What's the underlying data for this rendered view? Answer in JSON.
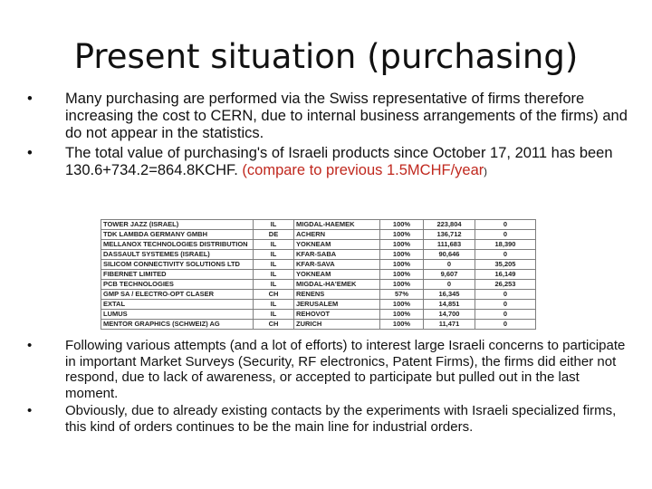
{
  "title": "Present situation (purchasing)",
  "bullets_top": [
    {
      "marker": "•",
      "text_parts": [
        {
          "text": " Many purchasing are performed via the Swiss representative of firms therefore increasing the cost to CERN, due to internal business arrangements of the firms) and do not appear in the statistics.",
          "style": "normal"
        }
      ]
    },
    {
      "marker": "•",
      "text_parts": [
        {
          "text": " The total value of purchasing's of Israeli products since October 17, 2011 has been 130.6+734.2=864.8KCHF. ",
          "style": "normal"
        },
        {
          "text": "(compare to previous 1.5MCHF/year",
          "style": "red"
        },
        {
          "text": ")",
          "style": "small"
        }
      ]
    }
  ],
  "table": {
    "rows": [
      [
        "TOWER JAZZ (ISRAEL)",
        "IL",
        "MIGDAL-HAEMEK",
        "100%",
        "223,804",
        "0"
      ],
      [
        "TDK LAMBDA GERMANY GMBH",
        "DE",
        "ACHERN",
        "100%",
        "136,712",
        "0"
      ],
      [
        "MELLANOX TECHNOLOGIES DISTRIBUTION",
        "IL",
        "YOKNEAM",
        "100%",
        "111,683",
        "18,390"
      ],
      [
        "DASSAULT SYSTEMES (ISRAEL)",
        "IL",
        "KFAR-SABA",
        "100%",
        "90,646",
        "0"
      ],
      [
        "SILICOM CONNECTIVITY SOLUTIONS LTD",
        "IL",
        "KFAR-SAVA",
        "100%",
        "0",
        "35,205"
      ],
      [
        "FIBERNET LIMITED",
        "IL",
        "YOKNEAM",
        "100%",
        "9,607",
        "16,149"
      ],
      [
        "PCB TECHNOLOGIES",
        "IL",
        "MIGDAL-HA'EMEK",
        "100%",
        "0",
        "26,253"
      ],
      [
        "GMP SA / ELECTRO-OPT CLASER",
        "CH",
        "RENENS",
        "57%",
        "16,345",
        "0"
      ],
      [
        "EXTAL",
        "IL",
        "JERUSALEM",
        "100%",
        "14,851",
        "0"
      ],
      [
        "LUMUS",
        "IL",
        "REHOVOT",
        "100%",
        "14,700",
        "0"
      ],
      [
        "MENTOR GRAPHICS (SCHWEIZ) AG",
        "CH",
        "ZURICH",
        "100%",
        "11,471",
        "0"
      ]
    ]
  },
  "bullets_bottom": [
    {
      "marker": "•",
      "text": "Following various attempts (and a lot of efforts) to interest large  Israeli concerns to participate in important Market Surveys (Security, RF electronics, Patent Firms), the firms did either not respond, due to lack of awareness, or accepted to participate but pulled out in the last moment."
    },
    {
      "marker": "•",
      "text": "Obviously, due to already existing contacts by the experiments with Israeli specialized firms, this kind of orders continues to be the main line for industrial orders."
    }
  ]
}
